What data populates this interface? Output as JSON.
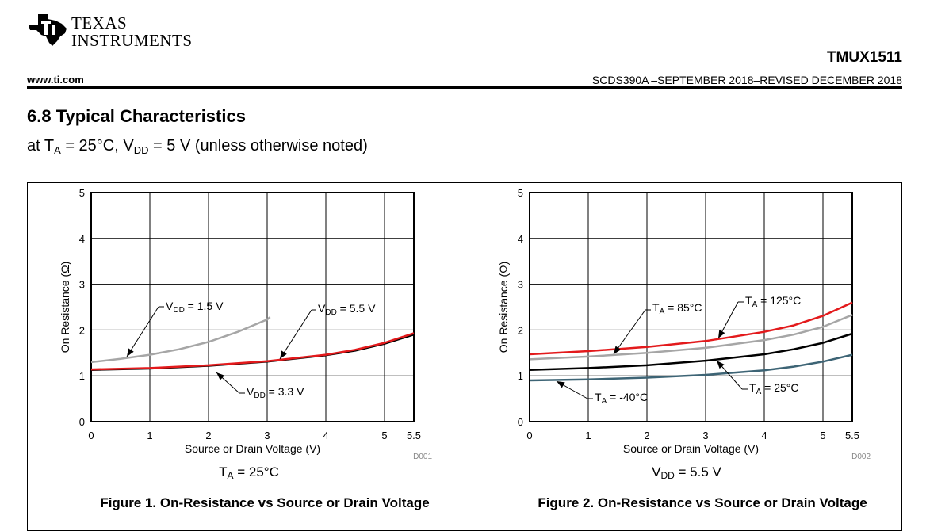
{
  "header": {
    "logo_line1": "TEXAS",
    "logo_line2": "INSTRUMENTS",
    "part_number": "TMUX1511",
    "website": "www.ti.com",
    "doc_id": "SCDS390A –SEPTEMBER 2018–REVISED DECEMBER 2018"
  },
  "section": {
    "title": "6.8   Typical Characteristics",
    "subtitle_parts": [
      "at T",
      "A",
      " = 25°C, V",
      "DD",
      " = 5 V (unless otherwise noted)"
    ]
  },
  "chart_data": [
    {
      "type": "line",
      "xlabel": "Source or Drain Voltage (V)",
      "ylabel": "On Resistance (Ω)",
      "xlim": [
        0,
        5.5
      ],
      "ylim": [
        0,
        5
      ],
      "x_ticks": [
        0,
        1,
        2,
        3,
        4,
        5,
        5.5
      ],
      "y_ticks": [
        0,
        1,
        2,
        3,
        4,
        5
      ],
      "grid": true,
      "code": "D001",
      "condition_parts": [
        "T",
        "A",
        " = 25°C"
      ],
      "caption": "Figure 1. On-Resistance vs Source or Drain Voltage",
      "series": [
        {
          "label_main": "V",
          "label_sub": "DD",
          "label_rest": " = 1.5 V",
          "color": "#a6a6a6",
          "x": [
            0,
            0.5,
            1,
            1.5,
            2,
            2.5,
            3,
            3.05
          ],
          "y": [
            1.3,
            1.37,
            1.46,
            1.58,
            1.74,
            1.96,
            2.23,
            2.28
          ]
        },
        {
          "label_main": "V",
          "label_sub": "DD",
          "label_rest": " = 3.3 V",
          "color": "#000000",
          "x": [
            0,
            1,
            2,
            3,
            4,
            4.5,
            5,
            5.5
          ],
          "y": [
            1.13,
            1.16,
            1.22,
            1.31,
            1.45,
            1.55,
            1.7,
            1.9
          ]
        },
        {
          "label_main": "V",
          "label_sub": "DD",
          "label_rest": " = 5.5 V",
          "color": "#e31a1c",
          "x": [
            0,
            1,
            2,
            3,
            4,
            4.5,
            5,
            5.5
          ],
          "y": [
            1.14,
            1.17,
            1.23,
            1.32,
            1.46,
            1.57,
            1.72,
            1.93
          ]
        }
      ]
    },
    {
      "type": "line",
      "xlabel": "Source or Drain Voltage (V)",
      "ylabel": "On Resistance (Ω)",
      "xlim": [
        0,
        5.5
      ],
      "ylim": [
        0,
        5
      ],
      "x_ticks": [
        0,
        1,
        2,
        3,
        4,
        5,
        5.5
      ],
      "y_ticks": [
        0,
        1,
        2,
        3,
        4,
        5
      ],
      "grid": true,
      "code": "D002",
      "condition_parts": [
        "V",
        "DD",
        " = 5.5 V"
      ],
      "caption": "Figure 2. On-Resistance vs Source or Drain Voltage",
      "series": [
        {
          "label_main": "T",
          "label_sub": "A",
          "label_rest": " = 125°C",
          "color": "#e31a1c",
          "x": [
            0,
            1,
            2,
            3,
            4,
            4.5,
            5,
            5.5
          ],
          "y": [
            1.47,
            1.54,
            1.63,
            1.76,
            1.96,
            2.1,
            2.31,
            2.6
          ]
        },
        {
          "label_main": "T",
          "label_sub": "A",
          "label_rest": " = 85°C",
          "color": "#a6a6a6",
          "x": [
            0,
            1,
            2,
            3,
            4,
            4.5,
            5,
            5.5
          ],
          "y": [
            1.36,
            1.42,
            1.5,
            1.61,
            1.78,
            1.9,
            2.07,
            2.33
          ]
        },
        {
          "label_main": "T",
          "label_sub": "A",
          "label_rest": " = 25°C",
          "color": "#000000",
          "x": [
            0,
            1,
            2,
            3,
            4,
            4.5,
            5,
            5.5
          ],
          "y": [
            1.13,
            1.17,
            1.23,
            1.33,
            1.47,
            1.58,
            1.72,
            1.92
          ]
        },
        {
          "label_main": "T",
          "label_sub": "A",
          "label_rest": " = -40°C",
          "color": "#3d6475",
          "x": [
            0,
            1,
            2,
            3,
            4,
            4.5,
            5,
            5.5
          ],
          "y": [
            0.9,
            0.92,
            0.96,
            1.02,
            1.12,
            1.2,
            1.31,
            1.46
          ]
        }
      ]
    }
  ]
}
